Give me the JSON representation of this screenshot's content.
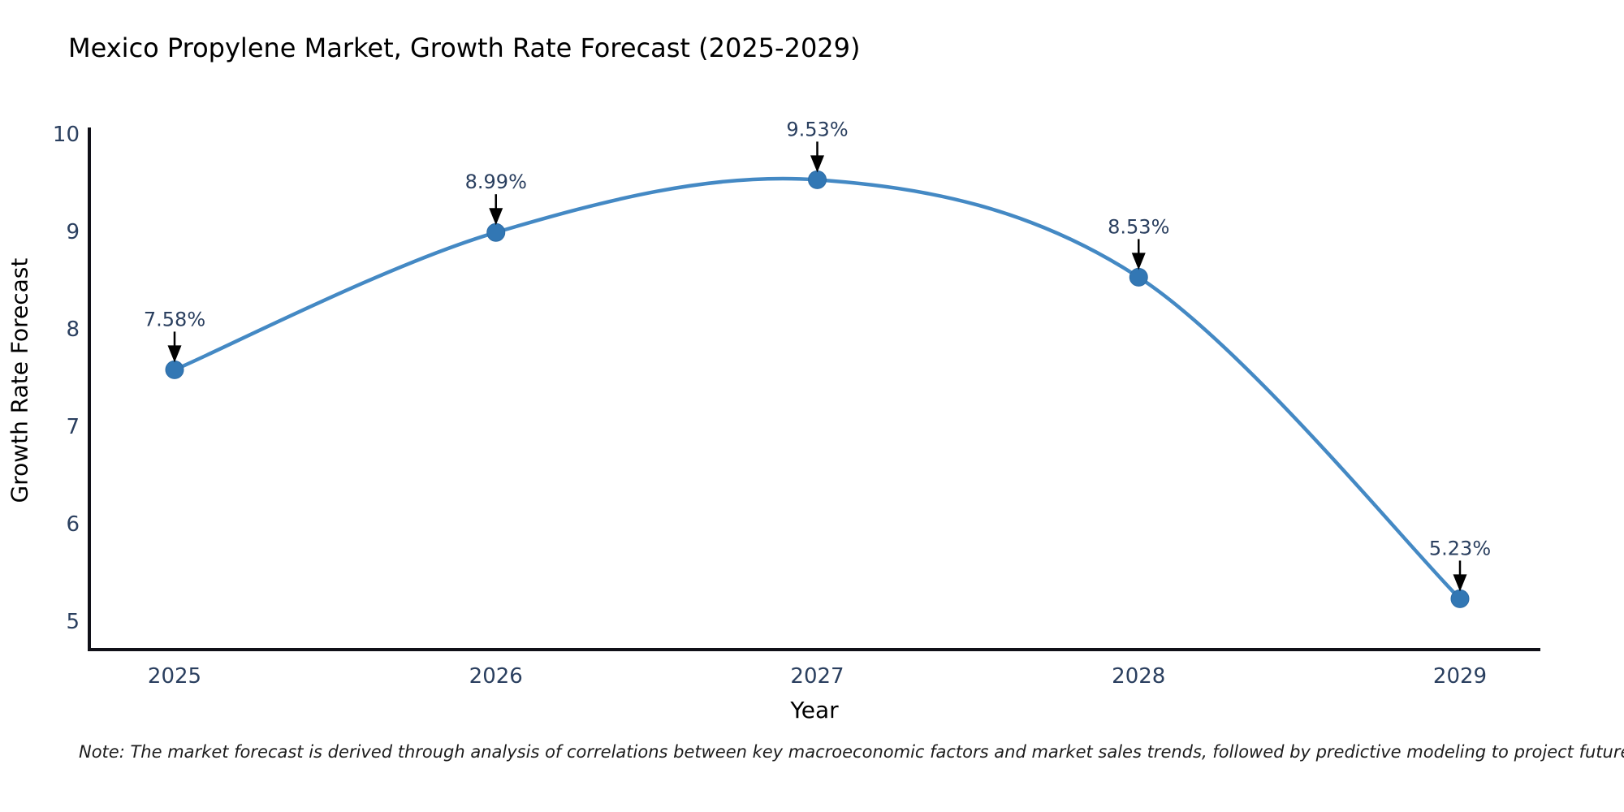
{
  "chart_data": {
    "type": "line",
    "title": "Mexico Propylene Market, Growth Rate Forecast (2025-2029)",
    "xlabel": "Year",
    "ylabel": "Growth Rate Forecast",
    "categories": [
      "2025",
      "2026",
      "2027",
      "2028",
      "2029"
    ],
    "values": [
      7.58,
      8.99,
      9.53,
      8.53,
      5.23
    ],
    "point_labels": [
      "7.58%",
      "8.99%",
      "9.53%",
      "8.53%",
      "5.23%"
    ],
    "y_ticks": [
      5,
      6,
      7,
      8,
      9,
      10
    ],
    "ylim": [
      4.7,
      10
    ],
    "grid": false,
    "legend": "none",
    "line_style": "smooth-spline",
    "marker_style": "circle",
    "annotation_style": "value-label-with-down-arrow",
    "colors": {
      "line": "#4489c4",
      "marker": "#3277b4",
      "marker_edge": "#2d6ca6",
      "arrow": "#000000",
      "axis": "#101018",
      "text": "#2a3f5f"
    },
    "note": "Note: The market forecast is derived through analysis of correlations between key macroeconomic factors and market sales trends, followed by predictive modeling to project future sales"
  }
}
